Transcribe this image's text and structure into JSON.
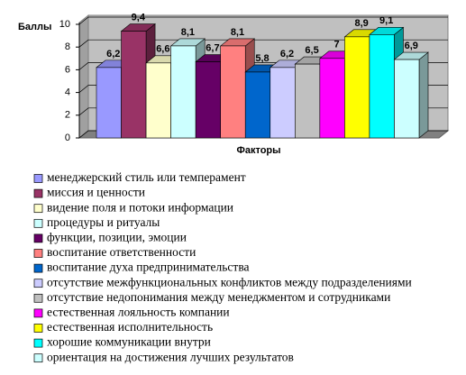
{
  "chart_data": {
    "type": "bar",
    "ylabel": "Баллы",
    "xlabel": "Факторы",
    "ylim": [
      0,
      10
    ],
    "yticks": [
      0,
      2,
      4,
      6,
      8,
      10
    ],
    "grid": true,
    "series": [
      {
        "name": "менеджерский стиль или темперамент",
        "color": "#9999ff",
        "values": [
          6.2
        ],
        "value_labels": [
          "6,2"
        ]
      },
      {
        "name": "миссия и ценности",
        "color": "#993366",
        "values": [
          9.4
        ],
        "value_labels": [
          "9,4"
        ]
      },
      {
        "name": "видение поля и потоки информации",
        "color": "#ffffcc",
        "values": [
          6.6
        ],
        "value_labels": [
          "6,6"
        ]
      },
      {
        "name": "процедуры и ритуалы",
        "color": "#ccffff",
        "values": [
          8.1
        ],
        "value_labels": [
          "8,1"
        ]
      },
      {
        "name": "функции, позиции, эмоции",
        "color": "#660066",
        "values": [
          6.7
        ],
        "value_labels": [
          "6,7"
        ]
      },
      {
        "name": "воспитание ответственности",
        "color": "#ff8080",
        "values": [
          8.1
        ],
        "value_labels": [
          "8,1"
        ]
      },
      {
        "name": "воспитание духа предпринимательства",
        "color": "#0066cc",
        "values": [
          5.8
        ],
        "value_labels": [
          "5,8"
        ]
      },
      {
        "name": "отсутствие межфункциональных конфликтов между подразделениями",
        "color": "#ccccff",
        "values": [
          6.2
        ],
        "value_labels": [
          "6,2"
        ]
      },
      {
        "name": "отсутствие недопонимания между менеджментом и сотрудниками",
        "color": "#c0c0c0",
        "values": [
          6.5
        ],
        "value_labels": [
          "6,5"
        ]
      },
      {
        "name": "естественная лояльность компании",
        "color": "#ff00ff",
        "values": [
          7
        ]
      },
      {
        "name": "естественная исполнительность",
        "color": "#ffff00",
        "values": [
          8.9
        ],
        "value_labels": [
          "8,9"
        ]
      },
      {
        "name": "хорошие коммуникации внутри",
        "color": "#00ffff",
        "values": [
          9.1
        ],
        "value_labels": [
          "9,1"
        ]
      },
      {
        "name": "ориентация на достижения лучших результатов",
        "color": "#ccffff",
        "values": [
          6.9
        ],
        "value_labels": [
          "6,9"
        ]
      }
    ]
  }
}
